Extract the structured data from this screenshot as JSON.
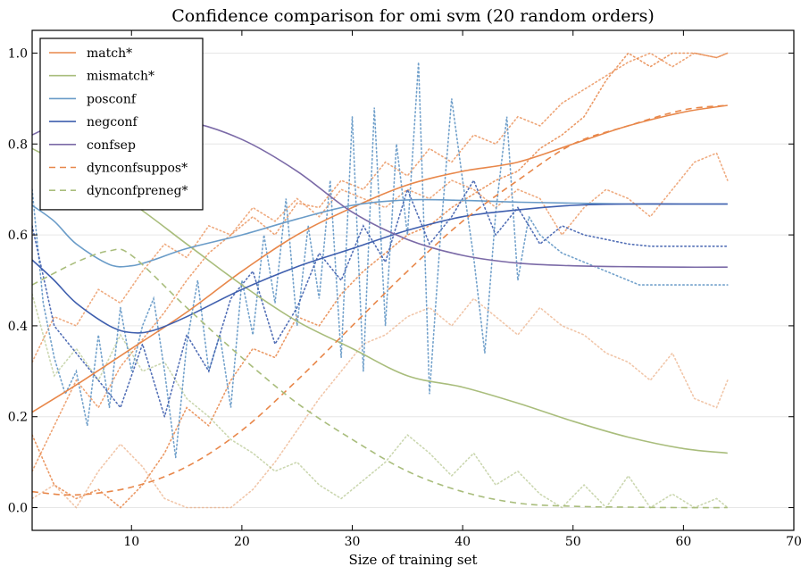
{
  "chart_data": {
    "type": "line",
    "title": "Confidence comparison for omi svm (20 random orders)",
    "xlabel": "Size of training set",
    "ylabel": "",
    "xlim": [
      1,
      70
    ],
    "ylim": [
      -0.05,
      1.05
    ],
    "xticks": [
      10,
      20,
      30,
      40,
      50,
      60,
      70
    ],
    "yticks": [
      "0.0",
      "0.2",
      "0.4",
      "0.6",
      "0.8",
      "1.0"
    ],
    "grid": "horizontal",
    "legend_position": "top-left",
    "colors": {
      "match": "#e8874a",
      "mismatch": "#a9bd7c",
      "posconf": "#6a9cc8",
      "negconf": "#3f5fae",
      "confsep": "#7b6aa7"
    },
    "series": [
      {
        "name": "match*",
        "style": "solid",
        "color": "#e8874a",
        "x": [
          1,
          5,
          10,
          15,
          20,
          25,
          30,
          35,
          40,
          45,
          50,
          55,
          60,
          64
        ],
        "y": [
          0.21,
          0.27,
          0.35,
          0.43,
          0.52,
          0.6,
          0.66,
          0.71,
          0.74,
          0.76,
          0.8,
          0.84,
          0.87,
          0.885
        ]
      },
      {
        "name": "mismatch*",
        "style": "solid",
        "color": "#a9bd7c",
        "x": [
          1,
          5,
          10,
          15,
          20,
          25,
          30,
          35,
          40,
          45,
          50,
          55,
          60,
          64
        ],
        "y": [
          0.79,
          0.74,
          0.67,
          0.58,
          0.49,
          0.41,
          0.35,
          0.29,
          0.265,
          0.23,
          0.19,
          0.155,
          0.13,
          0.12
        ]
      },
      {
        "name": "posconf",
        "style": "solid",
        "color": "#6a9cc8",
        "x": [
          1,
          3,
          5,
          8,
          10,
          12,
          15,
          20,
          25,
          30,
          35,
          40,
          45,
          50,
          55,
          60,
          64
        ],
        "y": [
          0.665,
          0.63,
          0.58,
          0.535,
          0.532,
          0.545,
          0.57,
          0.6,
          0.635,
          0.665,
          0.677,
          0.676,
          0.672,
          0.67,
          0.668,
          0.668,
          0.668
        ]
      },
      {
        "name": "negconf",
        "style": "solid",
        "color": "#3f5fae",
        "x": [
          1,
          3,
          5,
          8,
          10,
          12,
          15,
          20,
          25,
          30,
          35,
          40,
          45,
          50,
          55,
          60,
          64
        ],
        "y": [
          0.545,
          0.5,
          0.45,
          0.4,
          0.385,
          0.39,
          0.42,
          0.48,
          0.53,
          0.57,
          0.61,
          0.64,
          0.655,
          0.665,
          0.668,
          0.668,
          0.668
        ]
      },
      {
        "name": "confsep",
        "style": "solid",
        "color": "#7b6aa7",
        "x": [
          1,
          5,
          10,
          15,
          20,
          25,
          30,
          35,
          40,
          45,
          50,
          55,
          60,
          64
        ],
        "y": [
          0.82,
          0.86,
          0.86,
          0.85,
          0.81,
          0.74,
          0.65,
          0.59,
          0.555,
          0.538,
          0.532,
          0.53,
          0.529,
          0.529
        ]
      },
      {
        "name": "dynconfsuppos*",
        "style": "dashed",
        "color": "#e8874a",
        "x": [
          1,
          5,
          10,
          15,
          20,
          25,
          30,
          35,
          40,
          45,
          50,
          55,
          60,
          64
        ],
        "y": [
          0.035,
          0.028,
          0.045,
          0.09,
          0.17,
          0.28,
          0.4,
          0.52,
          0.63,
          0.72,
          0.8,
          0.84,
          0.875,
          0.885
        ]
      },
      {
        "name": "dynconfpreneg*",
        "style": "dashed",
        "color": "#a9bd7c",
        "x": [
          1,
          5,
          8,
          10,
          15,
          20,
          25,
          30,
          35,
          40,
          45,
          50,
          55,
          60,
          64
        ],
        "y": [
          0.49,
          0.54,
          0.565,
          0.555,
          0.44,
          0.33,
          0.23,
          0.15,
          0.08,
          0.035,
          0.01,
          0.003,
          0.001,
          0.0,
          0.0
        ]
      }
    ],
    "background_traces": [
      {
        "color": "#e8874a",
        "opacity": 0.85,
        "x": [
          1,
          3,
          5,
          7,
          9,
          11,
          13,
          15,
          17,
          19,
          21,
          23,
          25,
          27,
          29,
          31,
          33,
          35,
          37,
          39,
          41,
          43,
          45,
          47,
          49,
          51,
          53,
          55,
          57,
          59,
          61,
          63,
          64
        ],
        "y": [
          0.16,
          0.05,
          0.02,
          0.04,
          0.0,
          0.05,
          0.12,
          0.22,
          0.18,
          0.28,
          0.35,
          0.33,
          0.42,
          0.4,
          0.47,
          0.52,
          0.56,
          0.6,
          0.62,
          0.66,
          0.69,
          0.72,
          0.74,
          0.79,
          0.82,
          0.86,
          0.94,
          1.0,
          0.97,
          1.0,
          1.0,
          0.99,
          1.0
        ]
      },
      {
        "color": "#e8874a",
        "opacity": 0.75,
        "x": [
          1,
          3,
          5,
          7,
          9,
          11,
          13,
          15,
          17,
          19,
          21,
          23,
          25,
          27,
          29,
          31,
          33,
          35,
          37,
          39,
          41,
          43,
          45,
          47,
          49,
          51,
          53,
          55,
          57,
          59,
          61,
          63,
          64
        ],
        "y": [
          0.08,
          0.18,
          0.28,
          0.22,
          0.31,
          0.37,
          0.43,
          0.5,
          0.56,
          0.6,
          0.64,
          0.6,
          0.67,
          0.66,
          0.72,
          0.7,
          0.76,
          0.73,
          0.79,
          0.76,
          0.82,
          0.8,
          0.86,
          0.84,
          0.89,
          0.92,
          0.95,
          0.98,
          1.0,
          0.97,
          1.0,
          0.99,
          1.0
        ]
      },
      {
        "color": "#e8874a",
        "opacity": 0.7,
        "x": [
          1,
          3,
          5,
          7,
          9,
          11,
          13,
          15,
          17,
          19,
          21,
          23,
          25,
          27,
          29,
          31,
          33,
          35,
          37,
          39,
          41,
          43,
          45,
          47,
          49,
          51,
          53,
          55,
          57,
          59,
          61,
          63,
          64
        ],
        "y": [
          0.32,
          0.42,
          0.4,
          0.48,
          0.45,
          0.52,
          0.58,
          0.55,
          0.62,
          0.6,
          0.66,
          0.63,
          0.68,
          0.64,
          0.7,
          0.68,
          0.66,
          0.7,
          0.68,
          0.72,
          0.7,
          0.66,
          0.7,
          0.68,
          0.6,
          0.66,
          0.7,
          0.68,
          0.64,
          0.7,
          0.76,
          0.78,
          0.72
        ]
      },
      {
        "color": "#e8a070",
        "opacity": 0.6,
        "x": [
          1,
          3,
          5,
          7,
          9,
          11,
          13,
          15,
          17,
          19,
          21,
          23,
          25,
          27,
          29,
          31,
          33,
          35,
          37,
          39,
          41,
          43,
          45,
          47,
          49,
          51,
          53,
          55,
          57,
          59,
          61,
          63,
          64
        ],
        "y": [
          0.02,
          0.05,
          0.0,
          0.08,
          0.14,
          0.09,
          0.02,
          0.0,
          0.0,
          0.0,
          0.04,
          0.1,
          0.17,
          0.24,
          0.3,
          0.36,
          0.38,
          0.42,
          0.44,
          0.4,
          0.46,
          0.42,
          0.38,
          0.44,
          0.4,
          0.38,
          0.34,
          0.32,
          0.28,
          0.34,
          0.24,
          0.22,
          0.28
        ]
      },
      {
        "color": "#a9bd7c",
        "opacity": 0.6,
        "x": [
          1,
          3,
          5,
          7,
          9,
          11,
          13,
          15,
          17,
          19,
          21,
          23,
          25,
          27,
          29,
          31,
          33,
          35,
          37,
          39,
          41,
          43,
          45,
          47,
          49,
          51,
          53,
          55,
          57,
          59,
          61,
          63,
          64
        ],
        "y": [
          0.47,
          0.29,
          0.35,
          0.28,
          0.38,
          0.3,
          0.32,
          0.24,
          0.2,
          0.15,
          0.12,
          0.08,
          0.1,
          0.05,
          0.02,
          0.06,
          0.1,
          0.16,
          0.12,
          0.07,
          0.12,
          0.05,
          0.08,
          0.03,
          0.0,
          0.05,
          0.0,
          0.07,
          0.0,
          0.03,
          0.0,
          0.02,
          0.0
        ]
      },
      {
        "color": "#6a9cc8",
        "opacity": 0.95,
        "x": [
          1,
          2,
          3,
          4,
          5,
          6,
          7,
          8,
          9,
          10,
          11,
          12,
          13,
          14,
          15,
          16,
          17,
          18,
          19,
          20,
          21,
          22,
          23,
          24,
          25,
          26,
          27,
          28,
          29,
          30,
          31,
          32,
          33,
          34,
          35,
          36,
          37,
          38,
          39,
          40,
          41,
          42,
          43,
          44,
          45,
          46,
          47,
          48,
          49,
          50,
          51,
          52,
          53,
          54,
          55,
          56,
          57,
          58,
          59,
          60,
          61,
          62,
          63,
          64
        ],
        "y": [
          0.7,
          0.45,
          0.33,
          0.25,
          0.3,
          0.18,
          0.38,
          0.22,
          0.44,
          0.3,
          0.4,
          0.46,
          0.3,
          0.11,
          0.36,
          0.5,
          0.3,
          0.38,
          0.22,
          0.5,
          0.38,
          0.6,
          0.45,
          0.68,
          0.4,
          0.62,
          0.46,
          0.72,
          0.33,
          0.86,
          0.3,
          0.88,
          0.4,
          0.8,
          0.6,
          0.98,
          0.25,
          0.6,
          0.9,
          0.72,
          0.55,
          0.34,
          0.65,
          0.86,
          0.5,
          0.64,
          0.6,
          0.58,
          0.56,
          0.55,
          0.54,
          0.53,
          0.52,
          0.51,
          0.5,
          0.49,
          0.49,
          0.49,
          0.49,
          0.49,
          0.49,
          0.49,
          0.49,
          0.49
        ]
      },
      {
        "color": "#3f5fae",
        "opacity": 0.9,
        "x": [
          1,
          3,
          5,
          7,
          9,
          11,
          13,
          15,
          17,
          19,
          21,
          23,
          25,
          27,
          29,
          31,
          33,
          35,
          37,
          39,
          41,
          43,
          45,
          47,
          49,
          51,
          53,
          55,
          57,
          59,
          61,
          63,
          64
        ],
        "y": [
          0.62,
          0.4,
          0.34,
          0.28,
          0.22,
          0.36,
          0.2,
          0.38,
          0.3,
          0.46,
          0.52,
          0.36,
          0.44,
          0.56,
          0.5,
          0.62,
          0.54,
          0.7,
          0.58,
          0.64,
          0.72,
          0.6,
          0.66,
          0.58,
          0.62,
          0.6,
          0.59,
          0.58,
          0.575,
          0.575,
          0.575,
          0.575,
          0.575
        ]
      }
    ]
  }
}
